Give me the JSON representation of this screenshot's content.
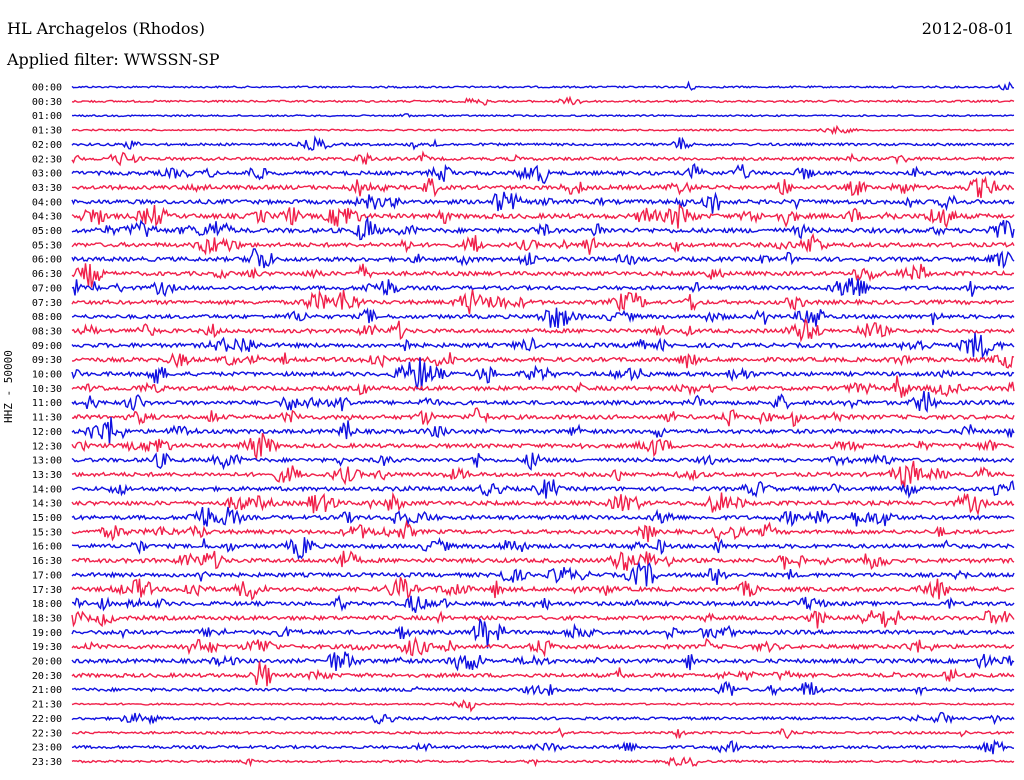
{
  "header": {
    "station": "HL Archagelos (Rhodos)",
    "date": "2012-08-01",
    "filter": "Applied filter: WWSSN-SP"
  },
  "axis": {
    "channel_label": "HHZ - 50000"
  },
  "colors": {
    "blue": "#1010e0",
    "red": "#f0204a",
    "background": "#ffffff"
  },
  "chart_data": {
    "type": "line",
    "description_kind": "helicorder",
    "title": "HL Archagelos (Rhodos)",
    "ylabel": "HHZ - 50000",
    "row_labels": [
      "00:00",
      "00:30",
      "01:00",
      "01:30",
      "02:00",
      "02:30",
      "03:00",
      "03:30",
      "04:00",
      "04:30",
      "05:00",
      "05:30",
      "06:00",
      "06:30",
      "07:00",
      "07:30",
      "08:00",
      "08:30",
      "09:00",
      "09:30",
      "10:00",
      "10:30",
      "11:00",
      "11:30",
      "12:00",
      "12:30",
      "13:00",
      "13:30",
      "14:00",
      "14:30",
      "15:00",
      "15:30",
      "16:00",
      "16:30",
      "17:00",
      "17:30",
      "18:00",
      "18:30",
      "19:00",
      "19:30",
      "20:00",
      "20:30",
      "21:00",
      "21:30",
      "22:00",
      "22:30",
      "23:00",
      "23:30"
    ],
    "row_colors_alternate": [
      "blue",
      "red"
    ],
    "row_minutes": 30,
    "relative_activity": [
      0.15,
      0.2,
      0.1,
      0.1,
      0.35,
      0.5,
      0.7,
      0.75,
      0.8,
      0.95,
      0.9,
      0.8,
      0.8,
      0.75,
      0.7,
      0.75,
      0.7,
      0.75,
      0.8,
      0.8,
      0.75,
      0.8,
      0.75,
      0.8,
      0.75,
      0.75,
      0.7,
      0.75,
      0.75,
      0.8,
      0.75,
      0.75,
      0.75,
      0.8,
      0.75,
      0.8,
      0.75,
      0.75,
      0.75,
      0.75,
      0.75,
      0.7,
      0.55,
      0.15,
      0.4,
      0.3,
      0.45,
      0.25
    ]
  }
}
